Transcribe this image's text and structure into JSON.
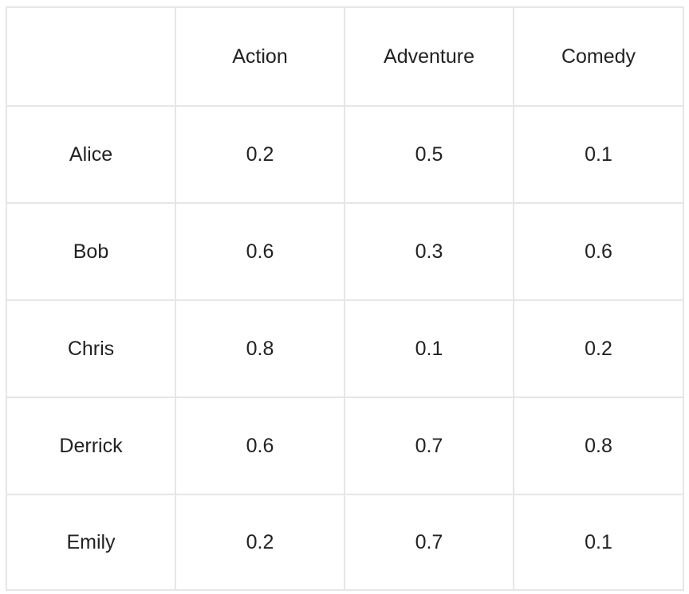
{
  "table": {
    "corner": "",
    "columns": [
      "Action",
      "Adventure",
      "Comedy"
    ],
    "rows": [
      {
        "name": "Alice",
        "values": [
          "0.2",
          "0.5",
          "0.1"
        ]
      },
      {
        "name": "Bob",
        "values": [
          "0.6",
          "0.3",
          "0.6"
        ]
      },
      {
        "name": "Chris",
        "values": [
          "0.8",
          "0.1",
          "0.2"
        ]
      },
      {
        "name": "Derrick",
        "values": [
          "0.6",
          "0.7",
          "0.8"
        ]
      },
      {
        "name": "Emily",
        "values": [
          "0.2",
          "0.7",
          "0.1"
        ]
      }
    ]
  }
}
